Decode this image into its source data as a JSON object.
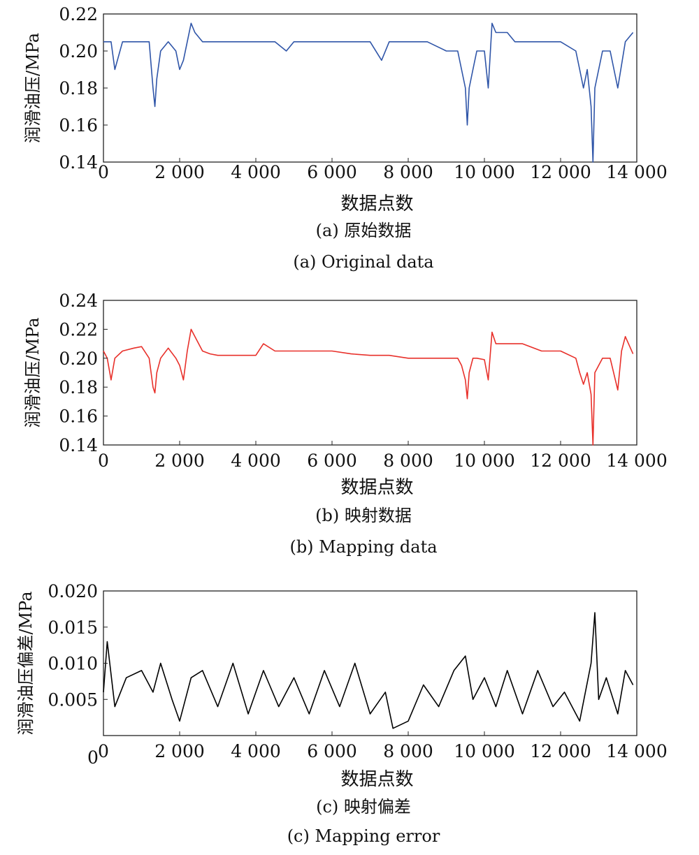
{
  "chart_data": [
    {
      "type": "line",
      "color": "#2f55a8",
      "ylabel": "润滑油压/MPa",
      "xlabel": "数据点数",
      "caption_cn": "(a) 原始数据",
      "caption_en": "(a) Original data",
      "xlim": [
        0,
        14000
      ],
      "ylim": [
        0.14,
        0.22
      ],
      "xticks": [
        "0",
        "2 000",
        "4 000",
        "6 000",
        "8 000",
        "10 000",
        "12 000",
        "14 000"
      ],
      "yticks": [
        "0.14",
        "0.16",
        "0.18",
        "0.20",
        "0.22"
      ],
      "series": [
        {
          "name": "",
          "x": [
            0,
            200,
            300,
            500,
            800,
            1000,
            1200,
            1300,
            1350,
            1400,
            1500,
            1700,
            1900,
            2000,
            2100,
            2200,
            2300,
            2400,
            2600,
            2800,
            3000,
            3500,
            4000,
            4500,
            4800,
            5000,
            5500,
            6000,
            6500,
            7000,
            7300,
            7500,
            8000,
            8500,
            9000,
            9300,
            9400,
            9500,
            9550,
            9600,
            9700,
            9800,
            10000,
            10100,
            10200,
            10300,
            10400,
            10600,
            10800,
            11000,
            11500,
            12000,
            12400,
            12500,
            12600,
            12700,
            12800,
            12850,
            12900,
            13000,
            13100,
            13300,
            13500,
            13700,
            13900
          ],
          "y": [
            0.205,
            0.205,
            0.19,
            0.205,
            0.205,
            0.205,
            0.205,
            0.18,
            0.17,
            0.185,
            0.2,
            0.205,
            0.2,
            0.19,
            0.195,
            0.205,
            0.215,
            0.21,
            0.205,
            0.205,
            0.205,
            0.205,
            0.205,
            0.205,
            0.2,
            0.205,
            0.205,
            0.205,
            0.205,
            0.205,
            0.195,
            0.205,
            0.205,
            0.205,
            0.2,
            0.2,
            0.19,
            0.18,
            0.16,
            0.18,
            0.19,
            0.2,
            0.2,
            0.18,
            0.215,
            0.21,
            0.21,
            0.21,
            0.205,
            0.205,
            0.205,
            0.205,
            0.2,
            0.19,
            0.18,
            0.19,
            0.17,
            0.14,
            0.18,
            0.19,
            0.2,
            0.2,
            0.18,
            0.205,
            0.21
          ]
        }
      ]
    },
    {
      "type": "line",
      "color": "#e8302a",
      "ylabel": "润滑油压/MPa",
      "xlabel": "数据点数",
      "caption_cn": "(b) 映射数据",
      "caption_en": "(b) Mapping data",
      "xlim": [
        0,
        14000
      ],
      "ylim": [
        0.14,
        0.24
      ],
      "xticks": [
        "0",
        "2 000",
        "4 000",
        "6 000",
        "8 000",
        "10 000",
        "12 000",
        "14 000"
      ],
      "yticks": [
        "0.14",
        "0.16",
        "0.18",
        "0.20",
        "0.22",
        "0.24"
      ],
      "series": [
        {
          "name": "",
          "x": [
            0,
            100,
            200,
            300,
            500,
            800,
            1000,
            1200,
            1300,
            1350,
            1400,
            1500,
            1700,
            1900,
            2000,
            2100,
            2200,
            2300,
            2400,
            2600,
            2800,
            3000,
            3500,
            4000,
            4200,
            4500,
            5000,
            5500,
            6000,
            6500,
            7000,
            7500,
            8000,
            8500,
            9000,
            9300,
            9400,
            9500,
            9550,
            9600,
            9700,
            9800,
            10000,
            10100,
            10200,
            10300,
            10500,
            11000,
            11500,
            12000,
            12400,
            12500,
            12600,
            12700,
            12800,
            12850,
            12900,
            13000,
            13100,
            13300,
            13500,
            13600,
            13700,
            13900
          ],
          "y": [
            0.205,
            0.2,
            0.185,
            0.2,
            0.205,
            0.207,
            0.208,
            0.2,
            0.18,
            0.176,
            0.19,
            0.2,
            0.207,
            0.2,
            0.195,
            0.185,
            0.205,
            0.22,
            0.215,
            0.205,
            0.203,
            0.202,
            0.202,
            0.202,
            0.21,
            0.205,
            0.205,
            0.205,
            0.205,
            0.203,
            0.202,
            0.202,
            0.2,
            0.2,
            0.2,
            0.2,
            0.195,
            0.185,
            0.172,
            0.19,
            0.2,
            0.2,
            0.199,
            0.185,
            0.218,
            0.21,
            0.21,
            0.21,
            0.205,
            0.205,
            0.2,
            0.19,
            0.182,
            0.19,
            0.175,
            0.14,
            0.19,
            0.195,
            0.2,
            0.2,
            0.178,
            0.205,
            0.215,
            0.203
          ]
        }
      ]
    },
    {
      "type": "line",
      "color": "#000000",
      "ylabel": "润滑油压偏差/MPa",
      "xlabel": "数据点数",
      "caption_cn": "(c) 映射偏差",
      "caption_en": "(c) Mapping error",
      "xlim": [
        0,
        14000
      ],
      "ylim": [
        0,
        0.02
      ],
      "xticks": [
        "0",
        "2 000",
        "4 000",
        "6 000",
        "8 000",
        "10 000",
        "12 000",
        "14 000"
      ],
      "yticks": [
        "0",
        "0.005",
        "0.010",
        "0.015",
        "0.020"
      ],
      "series": [
        {
          "name": "",
          "x": [
            0,
            100,
            300,
            600,
            1000,
            1300,
            1500,
            1800,
            2000,
            2300,
            2600,
            3000,
            3400,
            3800,
            4200,
            4600,
            5000,
            5400,
            5800,
            6200,
            6600,
            7000,
            7400,
            7600,
            8000,
            8400,
            8800,
            9200,
            9500,
            9700,
            10000,
            10300,
            10600,
            11000,
            11400,
            11800,
            12100,
            12500,
            12800,
            12900,
            13000,
            13200,
            13500,
            13700,
            13900
          ],
          "y": [
            0.006,
            0.013,
            0.004,
            0.008,
            0.009,
            0.006,
            0.01,
            0.005,
            0.002,
            0.008,
            0.009,
            0.004,
            0.01,
            0.003,
            0.009,
            0.004,
            0.008,
            0.003,
            0.009,
            0.004,
            0.01,
            0.003,
            0.006,
            0.001,
            0.002,
            0.007,
            0.004,
            0.009,
            0.011,
            0.005,
            0.008,
            0.004,
            0.009,
            0.003,
            0.009,
            0.004,
            0.006,
            0.002,
            0.01,
            0.017,
            0.005,
            0.008,
            0.003,
            0.009,
            0.007
          ]
        }
      ]
    }
  ]
}
